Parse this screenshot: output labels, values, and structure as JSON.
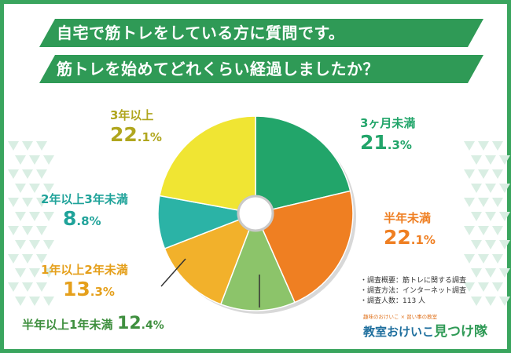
{
  "header": {
    "line1": "自宅で筋トレをしている方に質問です。",
    "line2": "筋トレを始めてどれくらい経過しましたか？"
  },
  "chart_data": {
    "type": "pie",
    "donut": true,
    "unit": "%",
    "slices": [
      {
        "label": "3ヶ月未満",
        "value_int": "21",
        "value_dec": ".3%",
        "value": 21.3,
        "color": "#22a56a",
        "text_color": "#22a56a"
      },
      {
        "label": "半年未満",
        "value_int": "22",
        "value_dec": ".1%",
        "value": 22.1,
        "color": "#ef7f22",
        "text_color": "#ef7f22"
      },
      {
        "label": "半年以上1年未満",
        "value_int": "12",
        "value_dec": ".4%",
        "value": 12.4,
        "color": "#8cc46a",
        "text_color": "#3f8f3f"
      },
      {
        "label": "1年以上2年未満",
        "value_int": "13",
        "value_dec": ".3%",
        "value": 13.3,
        "color": "#f2b12b",
        "text_color": "#e5a01c"
      },
      {
        "label": "2年以上3年未満",
        "value_int": "8",
        "value_dec": ".8%",
        "value": 8.8,
        "color": "#2bb3a6",
        "text_color": "#20a39a"
      },
      {
        "label": "3年以上",
        "value_int": "22",
        "value_dec": ".1%",
        "value": 22.1,
        "color": "#f0e533",
        "text_color": "#b0a61e"
      }
    ]
  },
  "survey_notes": [
    "調査概要：筋トレに関する調査",
    "調査方法：インターネット調査",
    "調査人数：113 人"
  ],
  "logo": {
    "tagline": "趣味のおけいこ × 習い事の教室",
    "name_part1": "教室おけいこ",
    "name_part2": "見つけ隊"
  },
  "colors": {
    "banner": "#2f9a56",
    "border": "#3aa55e",
    "pattern": "#d9eee3"
  }
}
